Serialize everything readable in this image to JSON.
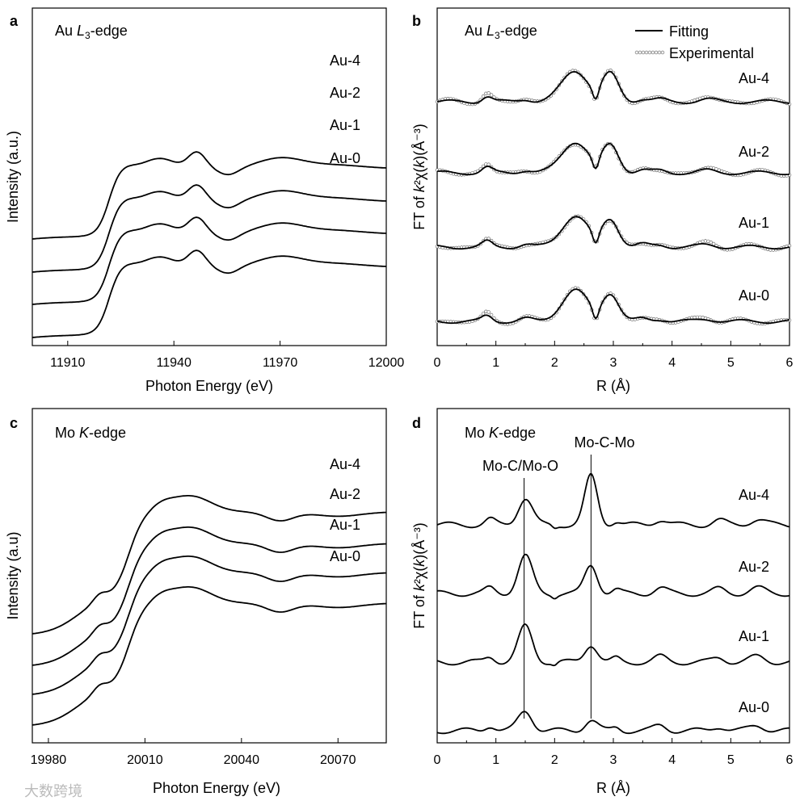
{
  "chart_data": [
    {
      "panel": "a",
      "type": "line",
      "title_prefix": "Au ",
      "title_italic": "L",
      "title_sub": "3",
      "title_suffix": "-edge",
      "xlabel": "Photon Energy (eV)",
      "ylabel": "Intensity (a.u.)",
      "xlim": [
        11900,
        12000
      ],
      "xticks": [
        "11910",
        "11940",
        "11970",
        "12000"
      ],
      "series": [
        {
          "name": "Au-4",
          "offset": 3
        },
        {
          "name": "Au-2",
          "offset": 2
        },
        {
          "name": "Au-1",
          "offset": 1
        },
        {
          "name": "Au-0",
          "offset": 0
        }
      ]
    },
    {
      "panel": "b",
      "type": "line",
      "title_prefix": "Au ",
      "title_italic": "L",
      "title_sub": "3",
      "title_suffix": "-edge",
      "xlabel": "R (Å)",
      "ylabel_prefix": "FT of ",
      "ylabel_k": "k",
      "ylabel_mid": "²χ(",
      "ylabel_k2": "k",
      "ylabel_end": ")(Å⁻³)",
      "xlim": [
        0,
        6
      ],
      "xticks": [
        "0",
        "1",
        "2",
        "3",
        "4",
        "5",
        "6"
      ],
      "legend": [
        "Fitting",
        "Experimental"
      ],
      "series": [
        {
          "name": "Au-4",
          "offset": 3
        },
        {
          "name": "Au-2",
          "offset": 2
        },
        {
          "name": "Au-1",
          "offset": 1
        },
        {
          "name": "Au-0",
          "offset": 0
        }
      ]
    },
    {
      "panel": "c",
      "type": "line",
      "title_prefix": "Mo ",
      "title_italic": "K",
      "title_suffix": "-edge",
      "xlabel": "Photon Energy (eV)",
      "ylabel": "Intensity (a.u)",
      "xlim": [
        19975,
        20085
      ],
      "xticks": [
        "19980",
        "20010",
        "20040",
        "20070"
      ],
      "series": [
        {
          "name": "Au-4",
          "offset": 3
        },
        {
          "name": "Au-2",
          "offset": 2
        },
        {
          "name": "Au-1",
          "offset": 1
        },
        {
          "name": "Au-0",
          "offset": 0
        }
      ]
    },
    {
      "panel": "d",
      "type": "line",
      "title_prefix": "Mo ",
      "title_italic": "K",
      "title_suffix": "-edge",
      "xlabel": "R (Å)",
      "ylabel_prefix": "FT of ",
      "ylabel_k": "k",
      "ylabel_mid": "²χ(",
      "ylabel_k2": "k",
      "ylabel_end": ")(Å⁻³)",
      "xlim": [
        0,
        6
      ],
      "xticks": [
        "0",
        "1",
        "2",
        "3",
        "4",
        "5",
        "6"
      ],
      "annotations": [
        {
          "text": "Mo-C/Mo-O",
          "x": 1.48
        },
        {
          "text": "Mo-C-Mo",
          "x": 2.62
        }
      ],
      "series": [
        {
          "name": "Au-4",
          "offset": 3
        },
        {
          "name": "Au-2",
          "offset": 2
        },
        {
          "name": "Au-1",
          "offset": 1
        },
        {
          "name": "Au-0",
          "offset": 0
        }
      ]
    }
  ],
  "watermark": "大数跨境"
}
